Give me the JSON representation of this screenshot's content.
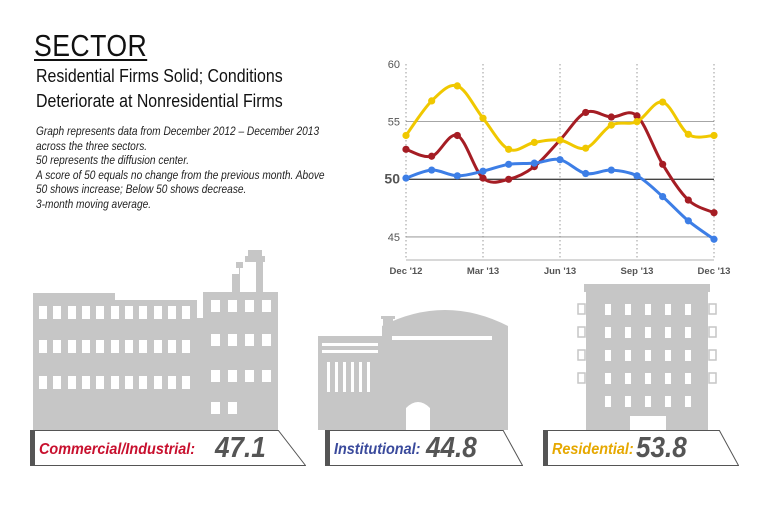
{
  "header": {
    "title": "SECTOR",
    "subtitle_line1": "Residential Firms Solid; Conditions",
    "subtitle_line2": "Deteriorate at Nonresidential Firms"
  },
  "notes": [
    "Graph represents data from December 2012 – December 2013",
    "across the three sectors.",
    "50 represents the diffusion center.",
    "A score of 50 equals no change from the previous month. Above",
    "50 shows increase; Below 50 shows decrease.",
    "3-month moving average."
  ],
  "chart_data": {
    "type": "line",
    "x": [
      "Dec '12",
      "Jan '13",
      "Feb '13",
      "Mar '13",
      "Apr '13",
      "May '13",
      "Jun '13",
      "Jul '13",
      "Aug '13",
      "Sep '13",
      "Oct '13",
      "Nov '13",
      "Dec '13"
    ],
    "x_tick_labels": [
      "Dec '12",
      "Mar '13",
      "Jun '13",
      "Sep '13",
      "Dec '13"
    ],
    "y_ticks": [
      45,
      50,
      55,
      60
    ],
    "ylim": [
      43,
      60
    ],
    "grid": "horizontal lines at 45, 50, 55 (50 emphasized); dotted verticals at quarters",
    "series": [
      {
        "name": "Commercial/Industrial",
        "color": "#a51d24",
        "values": [
          52.6,
          52.0,
          53.8,
          50.1,
          50.0,
          51.1,
          53.4,
          55.8,
          55.4,
          55.5,
          51.3,
          48.2,
          47.1
        ]
      },
      {
        "name": "Institutional",
        "color": "#3d7ee6",
        "values": [
          50.1,
          50.8,
          50.3,
          50.7,
          51.3,
          51.4,
          51.7,
          50.5,
          50.8,
          50.3,
          48.5,
          46.4,
          44.8
        ]
      },
      {
        "name": "Residential",
        "color": "#f0c800",
        "values": [
          53.8,
          56.8,
          58.1,
          55.3,
          52.6,
          53.2,
          53.4,
          52.7,
          54.7,
          55.0,
          56.7,
          53.9,
          53.8
        ]
      }
    ]
  },
  "banners": [
    {
      "label": "Commercial/Industrial:",
      "value": "47.1",
      "color": "#c8102e"
    },
    {
      "label": "Institutional:",
      "value": "44.8",
      "color": "#3a4a9c"
    },
    {
      "label": "Residential:",
      "value": "53.8",
      "color": "#e6a800"
    }
  ],
  "colors": {
    "building_gray": "#c6c6c6",
    "axis_gray": "#555555"
  }
}
